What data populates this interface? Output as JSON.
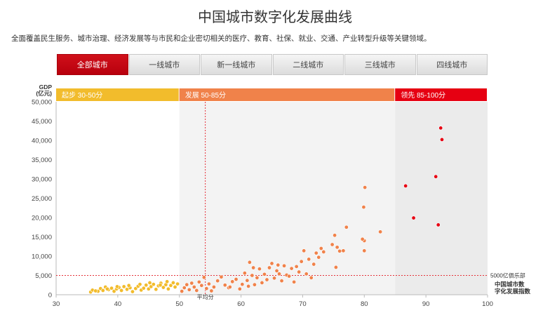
{
  "page": {
    "title": "中国城市数字化发展曲线",
    "description": "全面覆盖民生服务、城市治理、经济发展等与市民和企业密切相关的医疗、教育、社保、就业、交通、产业转型升级等关键领域。"
  },
  "tabs": [
    {
      "label": "全部城市",
      "active": true
    },
    {
      "label": "一线城市",
      "active": false
    },
    {
      "label": "新一线城市",
      "active": false
    },
    {
      "label": "二线城市",
      "active": false
    },
    {
      "label": "三线城市",
      "active": false
    },
    {
      "label": "四线城市",
      "active": false
    }
  ],
  "colors": {
    "start": "#f2bc2c",
    "develop": "#f0824a",
    "lead": "#e60012",
    "tab_active": "#c8000f"
  },
  "chart_data": {
    "type": "scatter",
    "title": "",
    "ylabel_line1": "GDP",
    "ylabel_line2": "(亿元)",
    "xlabel_line1": "中国城市数",
    "xlabel_line2": "字化发展指数",
    "xlim": [
      30,
      100
    ],
    "ylim": [
      0,
      50000
    ],
    "xticks": [
      30,
      40,
      50,
      60,
      70,
      80,
      90,
      100
    ],
    "yticks": [
      0,
      5000,
      10000,
      15000,
      20000,
      25000,
      30000,
      35000,
      40000,
      45000,
      50000
    ],
    "ytick_labels": [
      "0",
      "5,000",
      "10,000",
      "15,000",
      "20,000",
      "25,000",
      "30,000",
      "35,000",
      "40,000",
      "45,000",
      "50,000"
    ],
    "bands": [
      {
        "label": "起步 30-50分",
        "from": 30,
        "to": 50,
        "color": "#f2bc2c"
      },
      {
        "label": "发展 50-85分",
        "from": 50,
        "to": 85,
        "color": "#f0824a"
      },
      {
        "label": "领先 85-100分",
        "from": 85,
        "to": 100,
        "color": "#e60012"
      }
    ],
    "reference_lines": {
      "average_x": 54.2,
      "average_label": "平均分",
      "club_y": 5000,
      "club_label": "5000亿俱乐部"
    },
    "series": [
      {
        "band": "start",
        "color": "#f2bc2c",
        "points": [
          [
            35.6,
            700
          ],
          [
            35.9,
            1200
          ],
          [
            36.8,
            900
          ],
          [
            37.2,
            1600
          ],
          [
            37.6,
            1100
          ],
          [
            38.0,
            2000
          ],
          [
            38.5,
            1300
          ],
          [
            39.0,
            1700
          ],
          [
            39.4,
            900
          ],
          [
            39.8,
            1500
          ],
          [
            40.2,
            1900
          ],
          [
            40.6,
            1100
          ],
          [
            41.0,
            2100
          ],
          [
            41.5,
            1400
          ],
          [
            42.0,
            1800
          ],
          [
            42.4,
            800
          ],
          [
            42.9,
            1600
          ],
          [
            43.3,
            2200
          ],
          [
            43.8,
            1200
          ],
          [
            44.2,
            1700
          ],
          [
            44.6,
            2500
          ],
          [
            45.0,
            1500
          ],
          [
            45.4,
            2100
          ],
          [
            45.8,
            2700
          ],
          [
            46.2,
            1400
          ],
          [
            46.6,
            2300
          ],
          [
            47.0,
            3000
          ],
          [
            47.4,
            1900
          ],
          [
            47.8,
            2600
          ],
          [
            48.2,
            1500
          ],
          [
            48.6,
            2400
          ],
          [
            49.0,
            3100
          ],
          [
            49.3,
            2000
          ],
          [
            49.7,
            2800
          ],
          [
            48.0,
            3400
          ],
          [
            46.9,
            2500
          ],
          [
            45.2,
            3100
          ],
          [
            43.6,
            2700
          ],
          [
            41.8,
            2400
          ],
          [
            39.9,
            2100
          ],
          [
            38.3,
            1500
          ],
          [
            36.4,
            1000
          ]
        ]
      },
      {
        "band": "develop",
        "color": "#f0824a",
        "points": [
          [
            50.4,
            900
          ],
          [
            50.8,
            1800
          ],
          [
            51.2,
            2600
          ],
          [
            51.6,
            1300
          ],
          [
            52.0,
            3000
          ],
          [
            52.4,
            2000
          ],
          [
            52.8,
            1100
          ],
          [
            53.2,
            3300
          ],
          [
            53.6,
            2400
          ],
          [
            54.0,
            4500
          ],
          [
            54.4,
            1600
          ],
          [
            54.8,
            2800
          ],
          [
            55.2,
            1000
          ],
          [
            55.6,
            2000
          ],
          [
            56.2,
            3600
          ],
          [
            56.8,
            4600
          ],
          [
            57.4,
            2500
          ],
          [
            58.0,
            1800
          ],
          [
            58.6,
            3400
          ],
          [
            59.2,
            4000
          ],
          [
            59.8,
            1500
          ],
          [
            60.2,
            2700
          ],
          [
            60.6,
            5600
          ],
          [
            61.0,
            3700
          ],
          [
            61.4,
            8400
          ],
          [
            61.8,
            5000
          ],
          [
            62.2,
            2600
          ],
          [
            62.6,
            4400
          ],
          [
            63.0,
            6700
          ],
          [
            63.4,
            3100
          ],
          [
            63.8,
            5300
          ],
          [
            64.2,
            3900
          ],
          [
            64.6,
            7000
          ],
          [
            65.0,
            8100
          ],
          [
            65.4,
            4300
          ],
          [
            65.8,
            6200
          ],
          [
            66.2,
            5400
          ],
          [
            66.6,
            3600
          ],
          [
            67.0,
            7500
          ],
          [
            67.4,
            5100
          ],
          [
            67.8,
            4800
          ],
          [
            68.2,
            6800
          ],
          [
            68.6,
            3300
          ],
          [
            69.0,
            7300
          ],
          [
            69.4,
            5900
          ],
          [
            69.8,
            8600
          ],
          [
            70.2,
            11400
          ],
          [
            70.6,
            5400
          ],
          [
            71.0,
            9200
          ],
          [
            71.4,
            4400
          ],
          [
            71.8,
            7900
          ],
          [
            72.2,
            10800
          ],
          [
            72.6,
            9700
          ],
          [
            73.0,
            12000
          ],
          [
            73.4,
            11100
          ],
          [
            74.8,
            13000
          ],
          [
            75.2,
            15400
          ],
          [
            75.6,
            12300
          ],
          [
            76.0,
            11300
          ],
          [
            75.4,
            7100
          ],
          [
            76.6,
            11400
          ],
          [
            77.1,
            17500
          ],
          [
            79.9,
            22700
          ],
          [
            80.1,
            27800
          ],
          [
            80.0,
            14000
          ],
          [
            79.7,
            14400
          ],
          [
            82.6,
            16300
          ],
          [
            80.0,
            11400
          ],
          [
            62.0,
            7000
          ],
          [
            66.0,
            7700
          ],
          [
            58.2,
            2000
          ],
          [
            61.2,
            2200
          ]
        ]
      },
      {
        "band": "lead",
        "color": "#e60012",
        "points": [
          [
            86.7,
            28200
          ],
          [
            88.0,
            19900
          ],
          [
            91.6,
            30600
          ],
          [
            92.0,
            18100
          ],
          [
            92.4,
            43200
          ],
          [
            92.6,
            40200
          ]
        ]
      }
    ]
  }
}
